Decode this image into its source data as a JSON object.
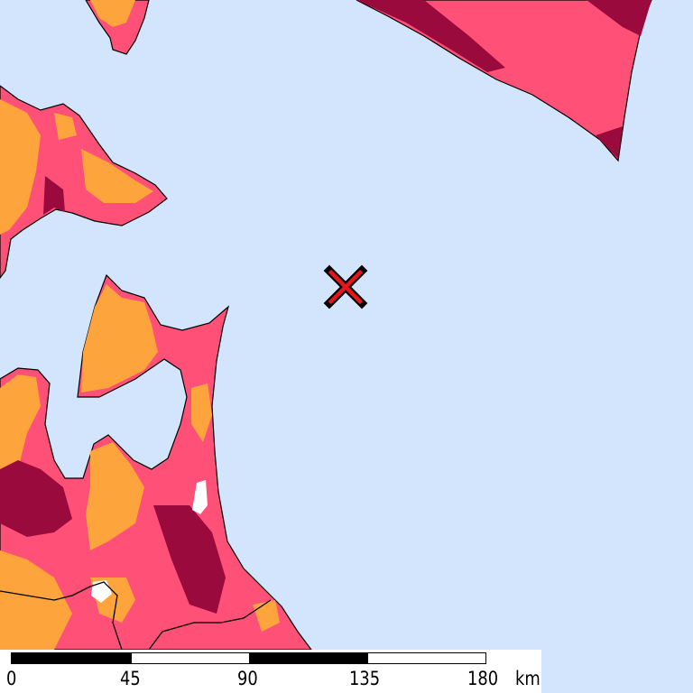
{
  "map": {
    "colors": {
      "sea": "#d2e5fd",
      "land_mid": "#ff5078",
      "land_high": "#9b0a3c",
      "land_low": "#fea43c",
      "marker": "#e8141e"
    },
    "marker_icon": "x-cross-icon"
  },
  "scale_bar": {
    "labels": [
      "0",
      "45",
      "90",
      "135",
      "180"
    ],
    "unit": "km"
  }
}
